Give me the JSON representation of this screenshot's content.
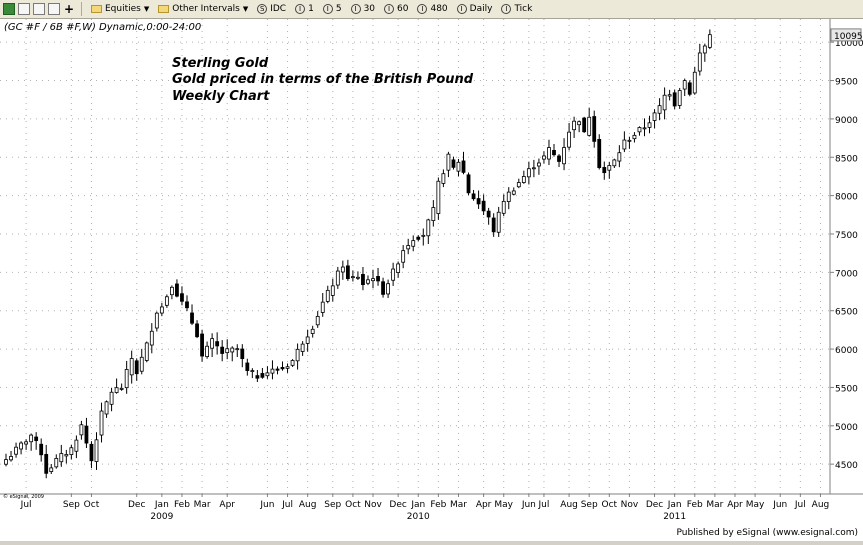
{
  "toolbar": {
    "items": [
      {
        "name": "equities-menu",
        "label": "Equities",
        "icon": "folder-icon",
        "dropdown": true
      },
      {
        "name": "other-intervals-menu",
        "label": "Other Intervals",
        "icon": "folder-icon",
        "dropdown": true
      },
      {
        "name": "interval-s",
        "label": "IDC",
        "icon": "S"
      },
      {
        "name": "interval-1",
        "label": "1",
        "icon": "I"
      },
      {
        "name": "interval-5",
        "label": "5",
        "icon": "I"
      },
      {
        "name": "interval-30",
        "label": "30",
        "icon": "I"
      },
      {
        "name": "interval-60",
        "label": "60",
        "icon": "I"
      },
      {
        "name": "interval-480",
        "label": "480",
        "icon": "I"
      },
      {
        "name": "interval-daily",
        "label": "Daily",
        "icon": "I"
      },
      {
        "name": "interval-tick",
        "label": "Tick",
        "icon": "I"
      }
    ]
  },
  "chart_header": "(GC #F / 6B #F,W) Dynamic,0:00-24:00",
  "annotation": [
    "Sterling Gold",
    "Gold priced in terms of the British Pound",
    "Weekly Chart"
  ],
  "copyright": "© eSignal, 2009",
  "footer": "Published by eSignal (www.esignal.com)",
  "last_price_label": "10095",
  "colors": {
    "up": "#ffffff",
    "down": "#000000",
    "grid": "#b0b0b0",
    "last_price_bg": "#e8e8e8"
  },
  "chart_data": {
    "type": "candlestick",
    "period": "weekly",
    "ylim": [
      4150,
      10250
    ],
    "yticks": [
      4500,
      5000,
      5500,
      6000,
      6500,
      7000,
      7500,
      8000,
      8500,
      9000,
      9500,
      10000
    ],
    "ytick_labels": [
      "4500",
      "5000",
      "5500",
      "6000",
      "6500",
      "7000",
      "7500",
      "8000",
      "8500",
      "9000",
      "9500",
      "10000"
    ],
    "month_labels": [
      {
        "label": "Jul",
        "week": 4
      },
      {
        "label": "Sep",
        "week": 13
      },
      {
        "label": "Oct",
        "week": 17
      },
      {
        "label": "Dec",
        "week": 26
      },
      {
        "label": "Jan",
        "week": 31
      },
      {
        "label": "Feb",
        "week": 35
      },
      {
        "label": "Mar",
        "week": 39
      },
      {
        "label": "Apr",
        "week": 44
      },
      {
        "label": "Jun",
        "week": 52
      },
      {
        "label": "Jul",
        "week": 56
      },
      {
        "label": "Aug",
        "week": 60
      },
      {
        "label": "Sep",
        "week": 65
      },
      {
        "label": "Oct",
        "week": 69
      },
      {
        "label": "Nov",
        "week": 73
      },
      {
        "label": "Dec",
        "week": 78
      },
      {
        "label": "Jan",
        "week": 82
      },
      {
        "label": "Feb",
        "week": 86
      },
      {
        "label": "Mar",
        "week": 90
      },
      {
        "label": "Apr",
        "week": 95
      },
      {
        "label": "May",
        "week": 99
      },
      {
        "label": "Jun",
        "week": 104
      },
      {
        "label": "Jul",
        "week": 107
      },
      {
        "label": "Aug",
        "week": 112
      },
      {
        "label": "Sep",
        "week": 116
      },
      {
        "label": "Oct",
        "week": 120
      },
      {
        "label": "Nov",
        "week": 124
      },
      {
        "label": "Dec",
        "week": 129
      },
      {
        "label": "Jan",
        "week": 133
      },
      {
        "label": "Feb",
        "week": 137
      },
      {
        "label": "Mar",
        "week": 141
      },
      {
        "label": "Apr",
        "week": 145
      },
      {
        "label": "May",
        "week": 149
      },
      {
        "label": "Jun",
        "week": 154
      },
      {
        "label": "Jul",
        "week": 158
      },
      {
        "label": "Aug",
        "week": 162
      }
    ],
    "year_labels": [
      {
        "label": "2009",
        "week": 31
      },
      {
        "label": "2010",
        "week": 82
      },
      {
        "label": "2011",
        "week": 133
      }
    ],
    "key_closes": [
      [
        0,
        4560
      ],
      [
        3,
        4750
      ],
      [
        5,
        4880
      ],
      [
        7,
        4650
      ],
      [
        8,
        4400
      ],
      [
        10,
        4550
      ],
      [
        13,
        4700
      ],
      [
        15,
        5000
      ],
      [
        17,
        4550
      ],
      [
        19,
        5150
      ],
      [
        21,
        5450
      ],
      [
        23,
        5500
      ],
      [
        25,
        5880
      ],
      [
        26,
        5700
      ],
      [
        28,
        6050
      ],
      [
        30,
        6500
      ],
      [
        31,
        6550
      ],
      [
        33,
        6850
      ],
      [
        35,
        6600
      ],
      [
        36,
        6500
      ],
      [
        38,
        6200
      ],
      [
        39,
        5900
      ],
      [
        41,
        6100
      ],
      [
        43,
        5950
      ],
      [
        46,
        6000
      ],
      [
        48,
        5700
      ],
      [
        50,
        5650
      ],
      [
        52,
        5700
      ],
      [
        55,
        5750
      ],
      [
        57,
        5850
      ],
      [
        59,
        6100
      ],
      [
        61,
        6300
      ],
      [
        63,
        6600
      ],
      [
        65,
        6850
      ],
      [
        67,
        7100
      ],
      [
        68,
        6900
      ],
      [
        70,
        6950
      ],
      [
        71,
        6850
      ],
      [
        73,
        6950
      ],
      [
        75,
        6750
      ],
      [
        77,
        7000
      ],
      [
        79,
        7300
      ],
      [
        81,
        7450
      ],
      [
        83,
        7500
      ],
      [
        85,
        7800
      ],
      [
        86,
        8150
      ],
      [
        88,
        8500
      ],
      [
        89,
        8350
      ],
      [
        90,
        8450
      ],
      [
        91,
        8300
      ],
      [
        92,
        8050
      ],
      [
        94,
        7900
      ],
      [
        96,
        7700
      ],
      [
        97,
        7550
      ],
      [
        99,
        7950
      ],
      [
        101,
        8100
      ],
      [
        103,
        8250
      ],
      [
        105,
        8400
      ],
      [
        107,
        8500
      ],
      [
        108,
        8600
      ],
      [
        110,
        8450
      ],
      [
        111,
        8650
      ],
      [
        112,
        8850
      ],
      [
        113,
        8950
      ],
      [
        114,
        9000
      ],
      [
        115,
        8800
      ],
      [
        116,
        9050
      ],
      [
        117,
        8750
      ],
      [
        118,
        8400
      ],
      [
        119,
        8300
      ],
      [
        121,
        8450
      ],
      [
        123,
        8700
      ],
      [
        125,
        8800
      ],
      [
        127,
        8900
      ],
      [
        129,
        9050
      ],
      [
        130,
        9150
      ],
      [
        131,
        9300
      ],
      [
        132,
        9350
      ],
      [
        133,
        9200
      ],
      [
        134,
        9400
      ],
      [
        135,
        9500
      ],
      [
        136,
        9350
      ],
      [
        137,
        9600
      ],
      [
        138,
        9850
      ],
      [
        139,
        9950
      ],
      [
        140,
        10095
      ]
    ],
    "last_value": 10095
  }
}
